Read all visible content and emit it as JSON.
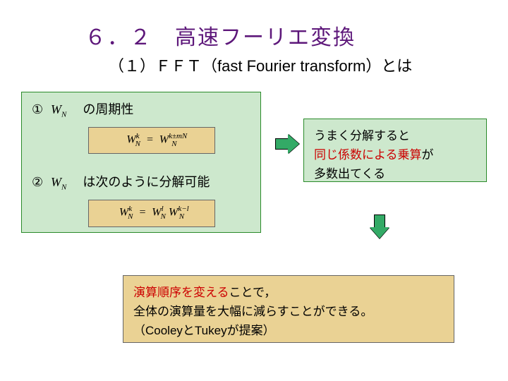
{
  "title": {
    "main": "６．２　高速フーリエ変換",
    "sub": "（１）ＦＦＴ（fast Fourier transform）とは"
  },
  "leftBox": {
    "item1_num": "①",
    "item1_text": "　の周期性",
    "formula1_html": "W<sub>N</sub><sup>k</sup> = W<sub>N</sub><sup>k±mN</sup>",
    "item2_num": "②",
    "item2_text": "　は次のように分解可能",
    "formula2_html": "W<sub>N</sub><sup>k</sup> = W<sub>N</sub><sup>l</sup> W<sub>N</sub><sup>k−l</sup>",
    "wn_symbol": "W",
    "wn_sub": "N"
  },
  "rightBox": {
    "line1": "うまく分解すると",
    "line2_red": "同じ係数による乗算",
    "line2_tail": "が",
    "line3": "多数出てくる"
  },
  "bottomBox": {
    "line1_red": "演算順序を変える",
    "line1_tail": "ことで，",
    "line2": "全体の演算量を大幅に減らすことができる。",
    "line3": "（CooleyとTukeyが提案）"
  },
  "colors": {
    "titlePurple": "#5d177a",
    "greenBox": "#cde8cd",
    "greenBorder": "#2a8a2a",
    "tanBox": "#ead294",
    "red": "#cc0000",
    "arrowFill": "#33aa66"
  }
}
